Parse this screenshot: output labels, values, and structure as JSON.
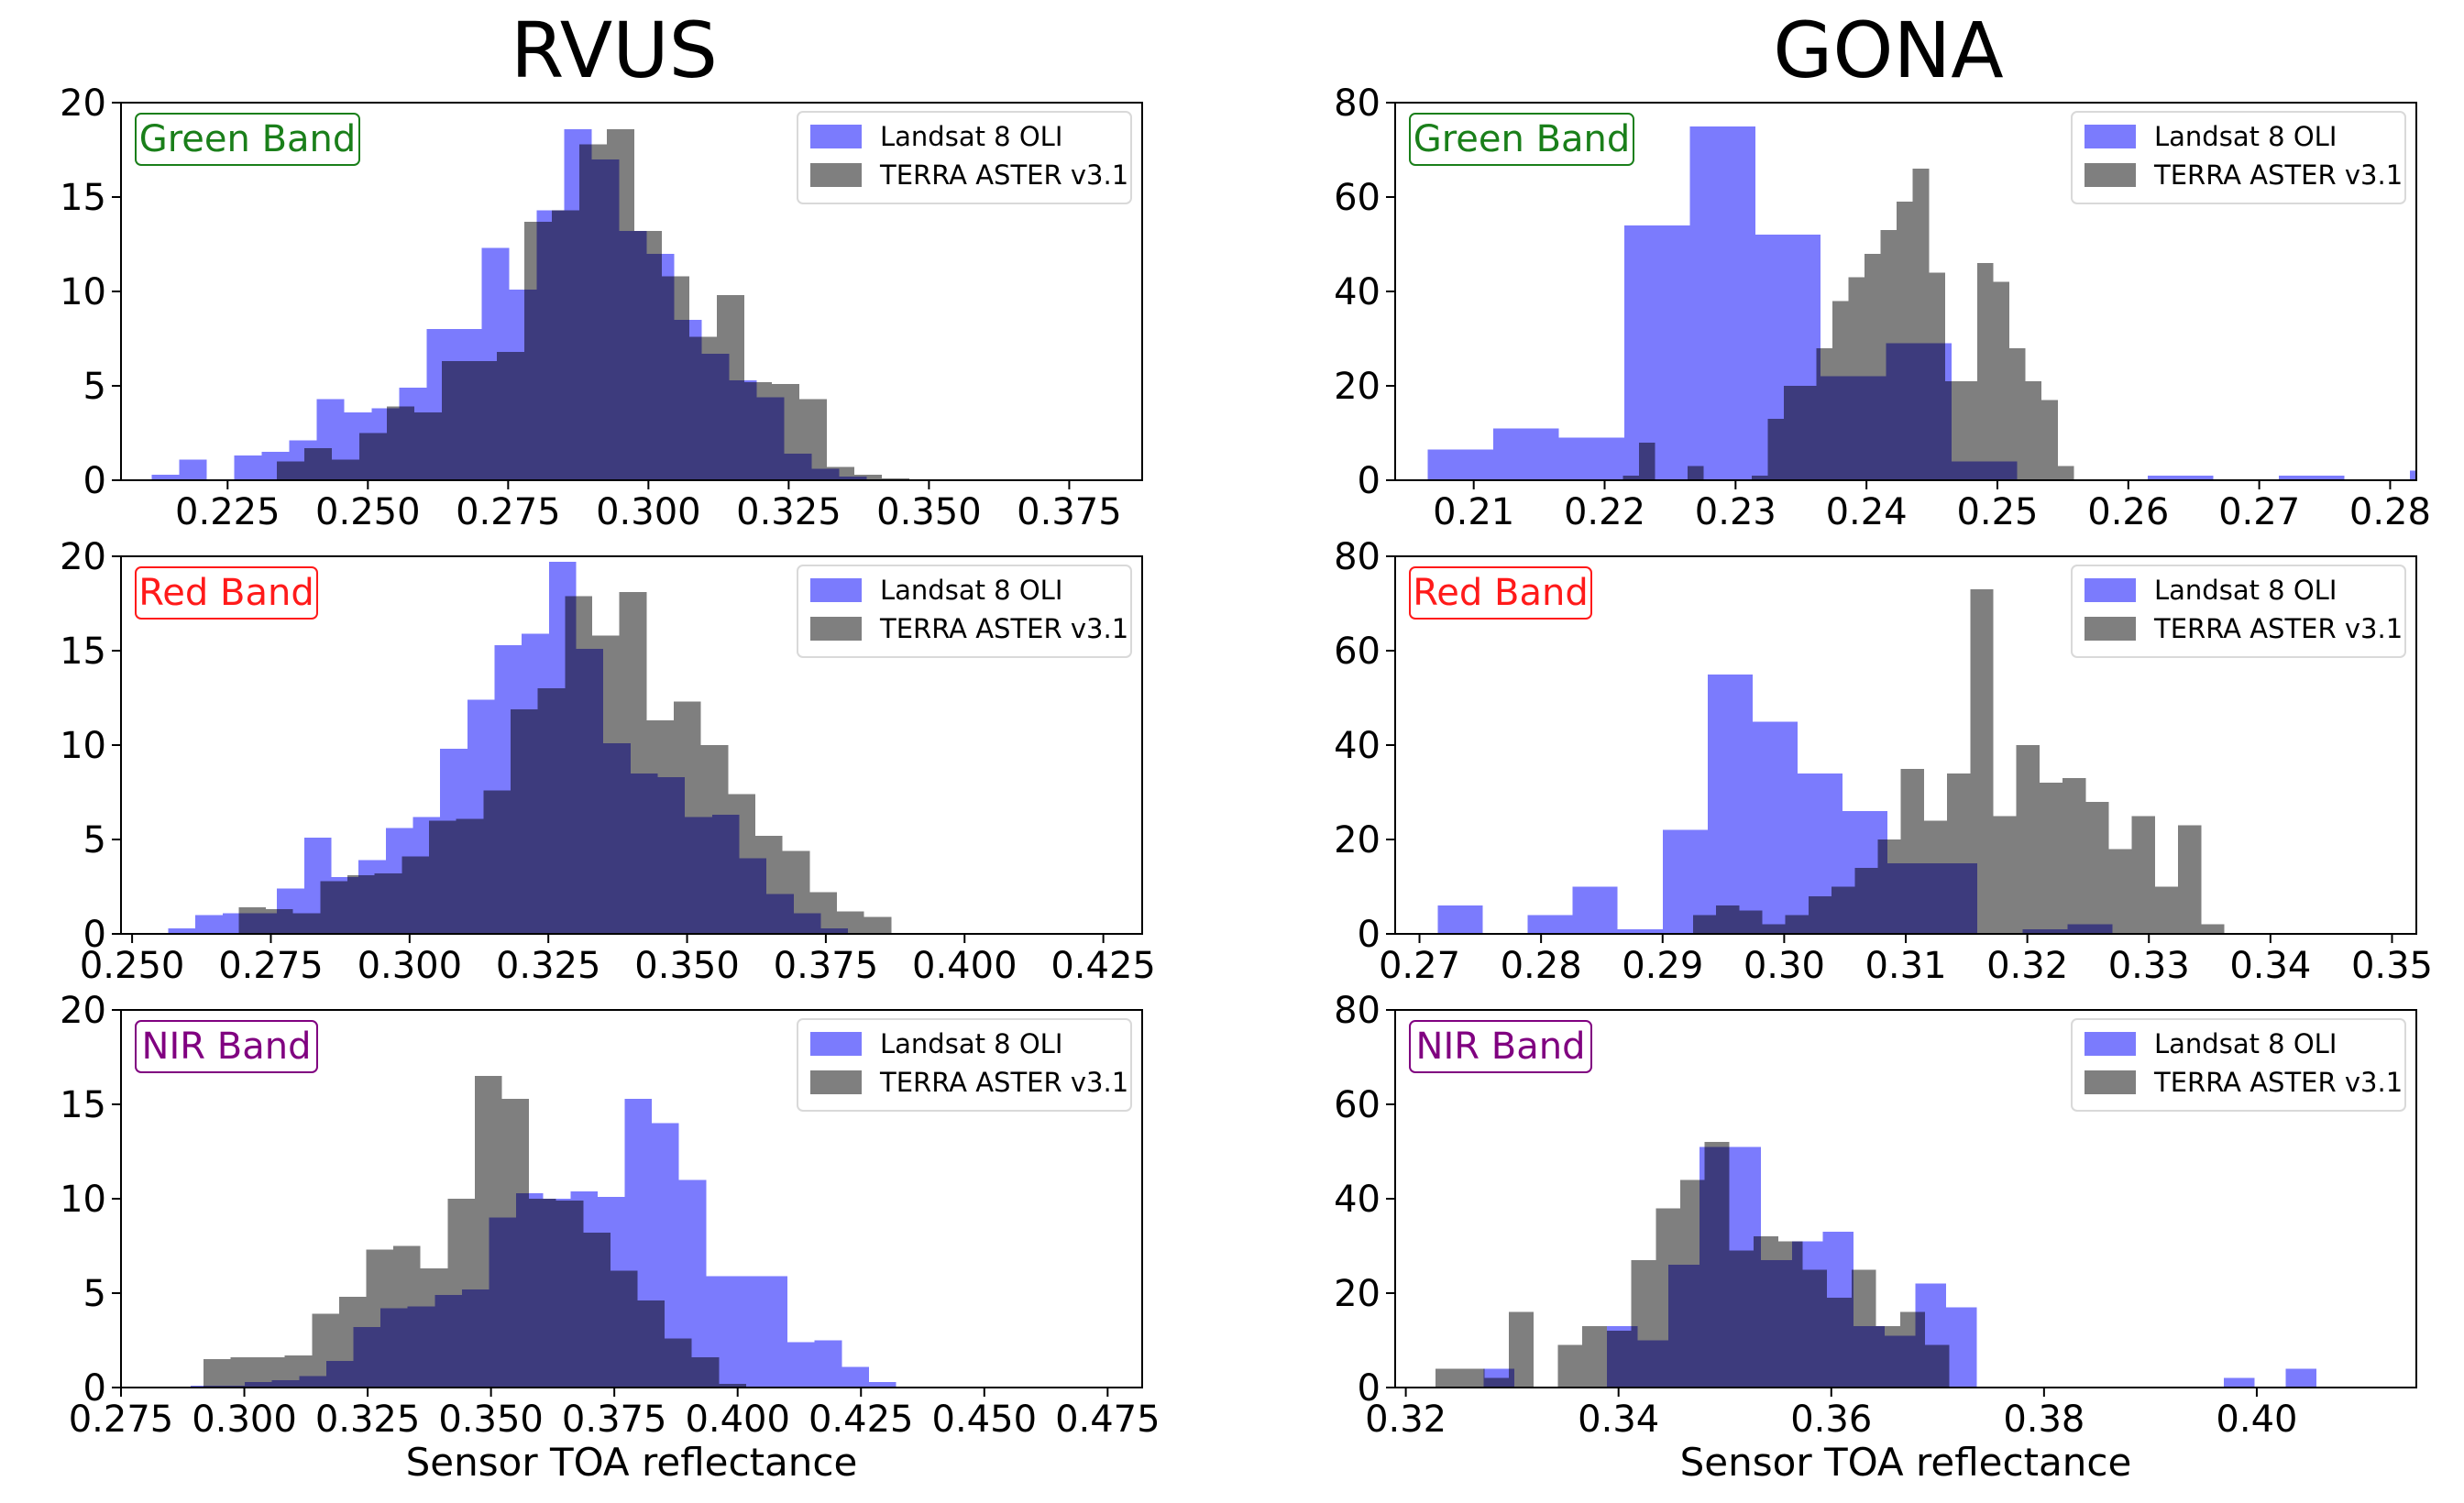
{
  "figure": {
    "columns": [
      "RVUS",
      "GONA"
    ],
    "xlabel": "Sensor TOA reflectance"
  },
  "colors": {
    "landsat": "#7b7bfd",
    "aster": "#7f7f7f",
    "overlap": "#3d3b7d",
    "green_band": "#1a7f1a",
    "red_band": "#ff1a1a",
    "nir_band": "#800080"
  },
  "chart_data": [
    {
      "type": "bar",
      "column": "RVUS",
      "band": "Green Band",
      "band_color": "green_band",
      "title": "",
      "xlabel": "",
      "ylabel": "",
      "xlim": [
        0.206,
        0.388
      ],
      "ylim": [
        0,
        20
      ],
      "xticks": [
        0.225,
        0.25,
        0.275,
        0.3,
        0.325,
        0.35,
        0.375
      ],
      "xtick_labels": [
        "0.225",
        "0.250",
        "0.275",
        "0.300",
        "0.325",
        "0.350",
        "0.375"
      ],
      "yticks": [
        0,
        5,
        10,
        15,
        20
      ],
      "legend": "top-right",
      "series": [
        {
          "name": "Landsat 8 OLI",
          "bin_start": 0.2115,
          "bin_width": 0.0049,
          "values": [
            0.3,
            1.1,
            0,
            1.3,
            1.5,
            2.1,
            4.3,
            3.6,
            3.8,
            4.9,
            8.0,
            8.0,
            12.3,
            10.1,
            14.3,
            18.6,
            17.0,
            13.2,
            12.0,
            8.5,
            6.7,
            5.3,
            4.4,
            1.4,
            0.6,
            0.2
          ]
        },
        {
          "name": "TERRA ASTER v3.1",
          "bin_start": 0.2338,
          "bin_width": 0.0049,
          "values": [
            1.0,
            1.7,
            1.1,
            2.5,
            3.9,
            3.6,
            6.3,
            6.3,
            6.8,
            13.7,
            14.3,
            17.8,
            18.6,
            13.2,
            10.8,
            7.6,
            9.8,
            5.2,
            5.1,
            4.3,
            0.7,
            0.3,
            0.1
          ]
        }
      ]
    },
    {
      "type": "bar",
      "column": "GONA",
      "band": "Green Band",
      "band_color": "green_band",
      "title": "",
      "xlabel": "",
      "ylabel": "",
      "xlim": [
        0.204,
        0.282
      ],
      "ylim": [
        0,
        80
      ],
      "xticks": [
        0.21,
        0.22,
        0.23,
        0.24,
        0.25,
        0.26,
        0.27,
        0.28
      ],
      "xtick_labels": [
        "0.21",
        "0.22",
        "0.23",
        "0.24",
        "0.25",
        "0.26",
        "0.27",
        "0.28"
      ],
      "yticks": [
        0,
        20,
        40,
        60,
        80
      ],
      "legend": "top-right",
      "series": [
        {
          "name": "Landsat 8 OLI",
          "bin_start": 0.2065,
          "bin_width": 0.005,
          "values": [
            6.5,
            11,
            9,
            54,
            75,
            52,
            22,
            29,
            4,
            0,
            0,
            1,
            0,
            1,
            0,
            2
          ]
        },
        {
          "name": "TERRA ASTER v3.1",
          "bin_start": 0.2214,
          "bin_width": 0.00123,
          "values": [
            1,
            8,
            0,
            0,
            3,
            0,
            0,
            0,
            1,
            13,
            20,
            20,
            28,
            38,
            43,
            48,
            53,
            59,
            66,
            44,
            21,
            21,
            46,
            42,
            28,
            21,
            17,
            3,
            0,
            0
          ]
        }
      ]
    },
    {
      "type": "bar",
      "column": "RVUS",
      "band": "Red Band",
      "band_color": "red_band",
      "title": "",
      "xlabel": "",
      "ylabel": "",
      "xlim": [
        0.248,
        0.432
      ],
      "ylim": [
        0,
        20
      ],
      "xticks": [
        0.25,
        0.275,
        0.3,
        0.325,
        0.35,
        0.375,
        0.4,
        0.425
      ],
      "xtick_labels": [
        "0.250",
        "0.275",
        "0.300",
        "0.325",
        "0.350",
        "0.375",
        "0.400",
        "0.425"
      ],
      "yticks": [
        0,
        5,
        10,
        15,
        20
      ],
      "legend": "top-right",
      "series": [
        {
          "name": "Landsat 8 OLI",
          "bin_start": 0.2565,
          "bin_width": 0.0049,
          "values": [
            0.3,
            1.0,
            1.1,
            1.1,
            2.4,
            5.1,
            3.0,
            3.9,
            5.6,
            6.2,
            9.8,
            12.4,
            15.3,
            15.9,
            19.7,
            15.1,
            10.1,
            8.5,
            8.3,
            6.2,
            6.3,
            4.0,
            2.1,
            1.1,
            0.3
          ]
        },
        {
          "name": "TERRA ASTER v3.1",
          "bin_start": 0.2692,
          "bin_width": 0.0049,
          "values": [
            1.4,
            1.3,
            1.1,
            2.8,
            3.1,
            3.2,
            4.1,
            6.0,
            6.1,
            7.6,
            11.9,
            13.0,
            17.9,
            15.8,
            18.1,
            11.3,
            12.3,
            10.0,
            7.4,
            5.2,
            4.4,
            2.2,
            1.2,
            0.9
          ]
        }
      ]
    },
    {
      "type": "bar",
      "column": "GONA",
      "band": "Red Band",
      "band_color": "red_band",
      "title": "",
      "xlabel": "",
      "ylabel": "",
      "xlim": [
        0.268,
        0.352
      ],
      "ylim": [
        0,
        80
      ],
      "xticks": [
        0.27,
        0.28,
        0.29,
        0.3,
        0.31,
        0.32,
        0.33,
        0.34,
        0.35
      ],
      "xtick_labels": [
        "0.27",
        "0.28",
        "0.29",
        "0.30",
        "0.31",
        "0.32",
        "0.33",
        "0.34",
        "0.35"
      ],
      "yticks": [
        0,
        20,
        40,
        60,
        80
      ],
      "legend": "top-right",
      "series": [
        {
          "name": "Landsat 8 OLI",
          "bin_start": 0.2715,
          "bin_width": 0.0037,
          "values": [
            6,
            0,
            4,
            10,
            1,
            22,
            55,
            45,
            34,
            26,
            15,
            15,
            0,
            1,
            2
          ]
        },
        {
          "name": "TERRA ASTER v3.1",
          "bin_start": 0.2925,
          "bin_width": 0.0019,
          "values": [
            4,
            6,
            5,
            2,
            4,
            8,
            10,
            14,
            20,
            35,
            24,
            34,
            73,
            25,
            40,
            32,
            33,
            28,
            18,
            25,
            10,
            23,
            2
          ]
        }
      ]
    },
    {
      "type": "bar",
      "column": "RVUS",
      "band": "NIR Band",
      "band_color": "nir_band",
      "title": "",
      "xlabel": "Sensor TOA reflectance",
      "ylabel": "",
      "xlim": [
        0.275,
        0.482
      ],
      "ylim": [
        0,
        20
      ],
      "xticks": [
        0.275,
        0.3,
        0.325,
        0.35,
        0.375,
        0.4,
        0.425,
        0.45,
        0.475
      ],
      "xtick_labels": [
        "0.275",
        "0.300",
        "0.325",
        "0.350",
        "0.375",
        "0.400",
        "0.425",
        "0.450",
        "0.475"
      ],
      "yticks": [
        0,
        5,
        10,
        15,
        20
      ],
      "legend": "top-right",
      "series": [
        {
          "name": "Landsat 8 OLI",
          "bin_start": 0.2891,
          "bin_width": 0.0055,
          "values": [
            0.1,
            0.1,
            0.3,
            0.4,
            0.6,
            1.4,
            3.2,
            4.2,
            4.3,
            4.9,
            5.2,
            9.0,
            10.3,
            10.0,
            10.4,
            10.1,
            15.3,
            14.0,
            11.0,
            5.9,
            5.9,
            5.9,
            2.4,
            2.5,
            1.1,
            0.3
          ]
        },
        {
          "name": "TERRA ASTER v3.1",
          "bin_start": 0.2917,
          "bin_width": 0.0055,
          "values": [
            1.5,
            1.6,
            1.6,
            1.7,
            3.9,
            4.8,
            7.3,
            7.5,
            6.3,
            10.0,
            16.5,
            15.3,
            10.0,
            9.9,
            8.2,
            6.2,
            4.6,
            2.6,
            1.6,
            0.2
          ]
        }
      ]
    },
    {
      "type": "bar",
      "column": "GONA",
      "band": "NIR Band",
      "band_color": "nir_band",
      "title": "",
      "xlabel": "Sensor TOA reflectance",
      "ylabel": "",
      "xlim": [
        0.319,
        0.415
      ],
      "ylim": [
        0,
        80
      ],
      "xticks": [
        0.32,
        0.34,
        0.36,
        0.38,
        0.4
      ],
      "xtick_labels": [
        "0.32",
        "0.34",
        "0.36",
        "0.38",
        "0.40"
      ],
      "yticks": [
        0,
        20,
        40,
        60,
        80
      ],
      "legend": "top-right",
      "series": [
        {
          "name": "Landsat 8 OLI",
          "bin_start": 0.3273,
          "bin_width": 0.0029,
          "values": [
            4,
            0,
            0,
            0,
            13,
            10,
            26,
            51,
            51,
            27,
            31,
            33,
            13,
            11,
            22,
            17,
            0,
            0,
            0,
            0,
            0,
            0,
            0,
            0,
            2,
            0,
            4
          ]
        },
        {
          "name": "TERRA ASTER v3.1",
          "bin_start": 0.3228,
          "bin_width": 0.0023,
          "values": [
            4,
            4,
            2,
            16,
            0,
            9,
            13,
            12,
            27,
            38,
            44,
            52,
            29,
            32,
            31,
            25,
            19,
            25,
            13,
            16,
            9
          ]
        }
      ]
    }
  ]
}
